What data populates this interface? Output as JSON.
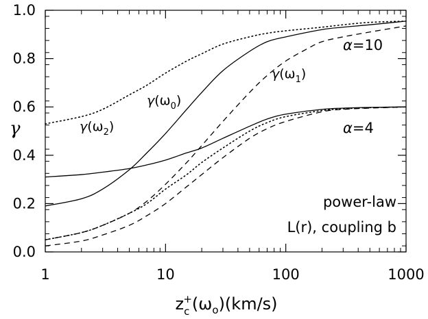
{
  "chart_data": {
    "type": "line",
    "x_scale": "log",
    "xlim": [
      1,
      1000
    ],
    "ylim": [
      0,
      1.0
    ],
    "grid": false,
    "xlabel": "z_c^+(ω_o)(km/s)",
    "ylabel": "γ",
    "x_ticks": [
      "1",
      "10",
      "100",
      "1000"
    ],
    "y_ticks": [
      "0.0",
      "0.2",
      "0.4",
      "0.6",
      "0.8",
      "1.0"
    ],
    "annotations": {
      "alpha10": "α=10",
      "alpha4": "α=4",
      "g0": "γ(ω0)",
      "g1": "γ(ω1)",
      "g2": "γ(ω2)",
      "legend1": "power-law",
      "legend2": "L(r), coupling b"
    },
    "series": [
      {
        "group": "α=10",
        "style": "solid",
        "x": [
          1,
          2,
          3,
          5,
          7,
          10,
          15,
          20,
          30,
          50,
          70,
          100,
          200,
          300,
          500,
          1000
        ],
        "y": [
          0.19,
          0.22,
          0.26,
          0.34,
          0.41,
          0.49,
          0.59,
          0.66,
          0.75,
          0.83,
          0.87,
          0.89,
          0.92,
          0.93,
          0.94,
          0.955
        ]
      },
      {
        "group": "α=10",
        "style": "dashed",
        "x": [
          1,
          2,
          3,
          5,
          7,
          10,
          15,
          20,
          30,
          50,
          70,
          100,
          150,
          200,
          300,
          500,
          1000
        ],
        "y": [
          0.05,
          0.08,
          0.11,
          0.16,
          0.21,
          0.28,
          0.37,
          0.44,
          0.54,
          0.66,
          0.73,
          0.79,
          0.84,
          0.87,
          0.89,
          0.91,
          0.935
        ]
      },
      {
        "group": "α=10",
        "style": "dotted",
        "x": [
          1,
          2,
          3,
          5,
          7,
          10,
          15,
          20,
          30,
          50,
          70,
          100,
          200,
          300,
          500,
          1000
        ],
        "y": [
          0.53,
          0.56,
          0.59,
          0.65,
          0.69,
          0.74,
          0.79,
          0.82,
          0.86,
          0.89,
          0.905,
          0.915,
          0.93,
          0.94,
          0.95,
          0.955
        ]
      },
      {
        "group": "α=4",
        "style": "solid",
        "x": [
          1,
          2,
          3,
          5,
          7,
          10,
          15,
          20,
          30,
          50,
          70,
          100,
          200,
          300,
          500,
          1000
        ],
        "y": [
          0.31,
          0.32,
          0.33,
          0.345,
          0.36,
          0.38,
          0.41,
          0.43,
          0.47,
          0.52,
          0.55,
          0.57,
          0.59,
          0.595,
          0.598,
          0.6
        ]
      },
      {
        "group": "α=4",
        "style": "dashed",
        "x": [
          1,
          2,
          3,
          5,
          7,
          10,
          15,
          20,
          30,
          50,
          70,
          100,
          200,
          300,
          500,
          1000
        ],
        "y": [
          0.025,
          0.045,
          0.07,
          0.11,
          0.15,
          0.2,
          0.27,
          0.32,
          0.39,
          0.47,
          0.51,
          0.54,
          0.58,
          0.59,
          0.595,
          0.6
        ]
      },
      {
        "group": "α=4",
        "style": "dotted",
        "x": [
          1,
          2,
          3,
          5,
          7,
          10,
          15,
          20,
          30,
          50,
          70,
          100,
          200,
          300,
          500,
          1000
        ],
        "y": [
          0.05,
          0.08,
          0.11,
          0.16,
          0.2,
          0.26,
          0.32,
          0.37,
          0.43,
          0.5,
          0.535,
          0.56,
          0.585,
          0.592,
          0.597,
          0.6
        ]
      }
    ]
  }
}
